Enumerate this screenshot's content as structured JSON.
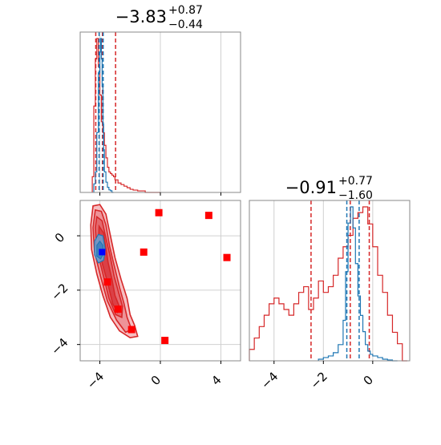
{
  "chart_data": [
    {
      "type": "histogram",
      "panel": "top-left",
      "title": {
        "median": "−3.83",
        "upper": "+0.87",
        "lower": "−0.44"
      },
      "xlim": [
        -5.3,
        5.3
      ],
      "xticks": [
        -4,
        0,
        4
      ],
      "grid": true,
      "series": [
        {
          "color": "#d62728",
          "bin_edges": [
            -4.5,
            -4.4,
            -4.3,
            -4.2,
            -4.1,
            -4.0,
            -3.9,
            -3.8,
            -3.7,
            -3.6,
            -3.5,
            -3.4,
            -3.3,
            -3.2,
            -3.1,
            -3.0,
            -2.8,
            -2.6,
            -2.4,
            -2.2,
            -2.0,
            -1.8,
            -1.5,
            -1.0,
            0.0
          ],
          "heights": [
            0.1,
            0.55,
            0.85,
            0.98,
            0.8,
            0.62,
            0.45,
            0.38,
            0.3,
            0.22,
            0.16,
            0.13,
            0.12,
            0.11,
            0.1,
            0.08,
            0.06,
            0.05,
            0.04,
            0.03,
            0.02,
            0.015,
            0.01,
            0.0
          ],
          "quantiles": [
            -4.27,
            -3.83,
            -2.96
          ]
        },
        {
          "color": "#1f77b4",
          "bin_edges": [
            -4.4,
            -4.3,
            -4.2,
            -4.1,
            -4.0,
            -3.95,
            -3.9,
            -3.85,
            -3.8,
            -3.75,
            -3.7,
            -3.6,
            -3.5,
            -3.4,
            -3.3,
            -3.2,
            -3.1
          ],
          "heights": [
            0.05,
            0.12,
            0.35,
            0.7,
            0.82,
            0.9,
            0.78,
            0.62,
            0.4,
            0.25,
            0.12,
            0.06,
            0.03,
            0.015,
            0.01,
            0.0
          ],
          "quantiles": [
            -4.05,
            -3.78
          ]
        }
      ]
    },
    {
      "type": "scatter",
      "panel": "bottom-left",
      "xlim": [
        -5.3,
        5.3
      ],
      "ylim": [
        -4.6,
        1.3
      ],
      "xticks": [
        -4,
        0,
        4
      ],
      "yticks": [
        0,
        -2,
        -4
      ],
      "grid": true,
      "contours": {
        "red": [
          [
            [
              -4.45,
              1.1
            ],
            [
              -4.0,
              1.15
            ],
            [
              -3.6,
              0.8
            ],
            [
              -3.3,
              0.0
            ],
            [
              -3.0,
              -0.8
            ],
            [
              -2.6,
              -1.6
            ],
            [
              -2.2,
              -2.3
            ],
            [
              -2.0,
              -2.9
            ],
            [
              -1.7,
              -3.3
            ],
            [
              -1.5,
              -3.7
            ],
            [
              -2.0,
              -3.75
            ],
            [
              -2.7,
              -3.5
            ],
            [
              -3.3,
              -3.0
            ],
            [
              -3.8,
              -2.2
            ],
            [
              -4.2,
              -1.4
            ],
            [
              -4.55,
              -0.5
            ],
            [
              -4.6,
              0.4
            ]
          ],
          [
            [
              -4.3,
              0.95
            ],
            [
              -3.9,
              0.9
            ],
            [
              -3.6,
              0.4
            ],
            [
              -3.35,
              -0.4
            ],
            [
              -3.05,
              -1.1
            ],
            [
              -2.7,
              -1.9
            ],
            [
              -2.4,
              -2.5
            ],
            [
              -2.2,
              -3.0
            ],
            [
              -1.9,
              -3.45
            ],
            [
              -2.3,
              -3.55
            ],
            [
              -2.9,
              -3.1
            ],
            [
              -3.5,
              -2.4
            ],
            [
              -3.95,
              -1.5
            ],
            [
              -4.35,
              -0.6
            ],
            [
              -4.45,
              0.3
            ]
          ],
          [
            [
              -4.2,
              0.7
            ],
            [
              -3.85,
              0.55
            ],
            [
              -3.55,
              -0.2
            ],
            [
              -3.3,
              -0.8
            ],
            [
              -3.05,
              -1.5
            ],
            [
              -2.75,
              -2.1
            ],
            [
              -2.5,
              -2.6
            ],
            [
              -2.55,
              -3.0
            ],
            [
              -2.95,
              -2.9
            ],
            [
              -3.4,
              -2.3
            ],
            [
              -3.8,
              -1.4
            ],
            [
              -4.2,
              -0.5
            ],
            [
              -4.3,
              0.3
            ]
          ],
          [
            [
              -4.05,
              0.35
            ],
            [
              -3.75,
              0.1
            ],
            [
              -3.6,
              -0.45
            ],
            [
              -3.45,
              -1.0
            ],
            [
              -3.2,
              -1.6
            ],
            [
              -3.0,
              -2.2
            ],
            [
              -2.75,
              -2.55
            ],
            [
              -2.85,
              -2.8
            ],
            [
              -3.15,
              -2.5
            ],
            [
              -3.5,
              -1.7
            ],
            [
              -3.85,
              -1.0
            ],
            [
              -4.1,
              -0.4
            ]
          ]
        ],
        "blue": [
          [
            [
              -4.35,
              -0.2
            ],
            [
              -4.1,
              0.05
            ],
            [
              -3.8,
              0.0
            ],
            [
              -3.65,
              -0.5
            ],
            [
              -3.75,
              -0.9
            ],
            [
              -4.1,
              -1.0
            ],
            [
              -4.35,
              -0.7
            ]
          ],
          [
            [
              -4.2,
              -0.35
            ],
            [
              -4.0,
              -0.2
            ],
            [
              -3.8,
              -0.35
            ],
            [
              -3.75,
              -0.65
            ],
            [
              -3.95,
              -0.85
            ],
            [
              -4.2,
              -0.75
            ]
          ]
        ]
      },
      "points_red": [
        [
          -0.1,
          0.85
        ],
        [
          3.2,
          0.75
        ],
        [
          -1.1,
          -0.6
        ],
        [
          4.4,
          -0.8
        ],
        [
          -3.5,
          -1.7
        ],
        [
          -2.8,
          -2.7
        ],
        [
          -1.9,
          -3.45
        ],
        [
          0.3,
          -3.85
        ]
      ],
      "point_blue": [
        -3.85,
        -0.6
      ]
    },
    {
      "type": "histogram",
      "panel": "bottom-right",
      "title": {
        "median": "−0.91",
        "upper": "+0.77",
        "lower": "−1.60"
      },
      "xlim": [
        -5.0,
        1.5
      ],
      "xticks": [
        -4,
        -2,
        0
      ],
      "grid": true,
      "series": [
        {
          "color": "#d62728",
          "bin_edges": [
            -5.0,
            -4.8,
            -4.6,
            -4.4,
            -4.2,
            -4.0,
            -3.8,
            -3.6,
            -3.4,
            -3.2,
            -3.0,
            -2.8,
            -2.6,
            -2.4,
            -2.2,
            -2.0,
            -1.8,
            -1.6,
            -1.4,
            -1.2,
            -1.0,
            -0.8,
            -0.6,
            -0.4,
            -0.2,
            0.0,
            0.2,
            0.4,
            0.6,
            0.8,
            1.0,
            1.2,
            1.4
          ],
          "heights": [
            0.02,
            0.04,
            0.06,
            0.08,
            0.1,
            0.11,
            0.1,
            0.09,
            0.08,
            0.1,
            0.12,
            0.13,
            0.09,
            0.11,
            0.14,
            0.12,
            0.13,
            0.15,
            0.18,
            0.2,
            0.22,
            0.25,
            0.26,
            0.27,
            0.24,
            0.2,
            0.15,
            0.12,
            0.08,
            0.05,
            0.03,
            0.0
          ],
          "quantiles": [
            -2.5,
            -0.91,
            -0.14
          ]
        },
        {
          "color": "#1f77b4",
          "bin_edges": [
            -2.2,
            -2.0,
            -1.8,
            -1.6,
            -1.4,
            -1.2,
            -1.1,
            -1.0,
            -0.9,
            -0.8,
            -0.7,
            -0.6,
            -0.5,
            -0.4,
            -0.3,
            -0.2,
            -0.1,
            0.0,
            0.2,
            0.4,
            0.6,
            0.8,
            1.0
          ],
          "heights": [
            0.01,
            0.02,
            0.03,
            0.05,
            0.1,
            0.25,
            0.55,
            0.85,
            0.95,
            0.82,
            0.6,
            0.4,
            0.28,
            0.18,
            0.1,
            0.06,
            0.04,
            0.03,
            0.02,
            0.01,
            0.005,
            0.0
          ],
          "quantiles": [
            -1.05,
            -0.55
          ]
        }
      ]
    }
  ]
}
